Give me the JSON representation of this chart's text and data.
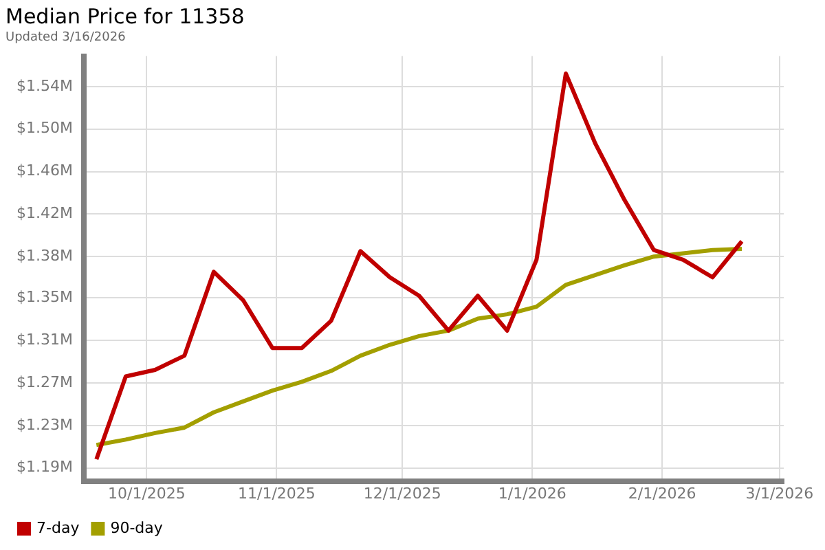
{
  "chart_data": {
    "type": "line",
    "title": "Median Price for 11358",
    "subtitle": "Updated 3/16/2026",
    "x": [
      "2025-09-19",
      "2025-09-26",
      "2025-10-03",
      "2025-10-10",
      "2025-10-17",
      "2025-10-24",
      "2025-10-31",
      "2025-11-07",
      "2025-11-14",
      "2025-11-21",
      "2025-11-28",
      "2025-12-05",
      "2025-12-12",
      "2025-12-19",
      "2025-12-26",
      "2026-01-02",
      "2026-01-09",
      "2026-01-16",
      "2026-01-23",
      "2026-01-30",
      "2026-02-06",
      "2026-02-13",
      "2026-02-20"
    ],
    "series": [
      {
        "name": "7-day",
        "color": "#c00000",
        "values": [
          1.198,
          1.274,
          1.28,
          1.293,
          1.37,
          1.344,
          1.3,
          1.3,
          1.325,
          1.389,
          1.365,
          1.348,
          1.316,
          1.348,
          1.316,
          1.381,
          1.552,
          1.488,
          1.436,
          1.39,
          1.381,
          1.365,
          1.398
        ]
      },
      {
        "name": "90-day",
        "color": "#a39f00",
        "values": [
          1.211,
          1.216,
          1.222,
          1.227,
          1.241,
          1.251,
          1.261,
          1.269,
          1.279,
          1.293,
          1.303,
          1.311,
          1.316,
          1.327,
          1.331,
          1.338,
          1.358,
          1.367,
          1.376,
          1.384,
          1.387,
          1.39,
          1.391
        ]
      }
    ],
    "xlim": [
      "2025-09-16",
      "2026-03-02"
    ],
    "xticks": [
      {
        "value": "2025-10-01",
        "label": "10/1/2025"
      },
      {
        "value": "2025-11-01",
        "label": "11/1/2025"
      },
      {
        "value": "2025-12-01",
        "label": "12/1/2025"
      },
      {
        "value": "2026-01-01",
        "label": "1/1/2026"
      },
      {
        "value": "2026-02-01",
        "label": "2/1/2026"
      },
      {
        "value": "2026-03-01",
        "label": "3/1/2026"
      }
    ],
    "ylim": [
      1.178,
      1.568
    ],
    "yticks": [
      {
        "value": 1.19,
        "label": "$1.19M"
      },
      {
        "value": 1.229,
        "label": "$1.23M"
      },
      {
        "value": 1.268,
        "label": "$1.27M"
      },
      {
        "value": 1.307,
        "label": "$1.31M"
      },
      {
        "value": 1.346,
        "label": "$1.35M"
      },
      {
        "value": 1.384,
        "label": "$1.38M"
      },
      {
        "value": 1.423,
        "label": "$1.42M"
      },
      {
        "value": 1.462,
        "label": "$1.46M"
      },
      {
        "value": 1.501,
        "label": "$1.50M"
      },
      {
        "value": 1.54,
        "label": "$1.54M"
      }
    ],
    "grid": true,
    "legend": "bottom left",
    "marker": "none",
    "line_style": "solid"
  }
}
